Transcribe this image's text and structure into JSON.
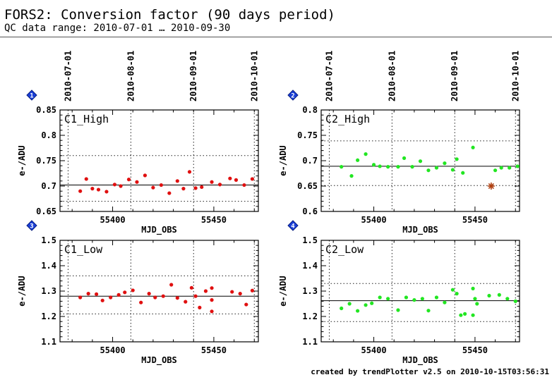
{
  "header": {
    "title": "FORS2: Conversion factor (90 days period)",
    "subtitle": "QC data range: 2010-07-01 … 2010-09-30"
  },
  "footer": "created by trendPlotter v2.5 on 2010-10-15T03:56:31",
  "chart_data": [
    {
      "type": "scatter",
      "panel_number": "1",
      "label": "C1_High",
      "xlabel": "MJD_OBS",
      "ylabel": "e-/ADU",
      "xlim": [
        55374,
        55472
      ],
      "ylim": [
        0.65,
        0.85
      ],
      "yticks": [
        "0.65",
        "0.7",
        "0.75",
        "0.8",
        "0.85"
      ],
      "xticks": [
        "55400",
        "55450"
      ],
      "top_dates": [
        "2010-07-01",
        "2010-08-01",
        "2010-09-01",
        "2010-10-01"
      ],
      "mean": 0.702,
      "limits": [
        0.67,
        0.76
      ],
      "color": "#e01010",
      "x": [
        55384,
        55387,
        55390,
        55393,
        55397,
        55401,
        55404,
        55408,
        55412,
        55416,
        55420,
        55424,
        55428,
        55432,
        55435,
        55438,
        55441,
        55444,
        55449,
        55453,
        55458,
        55461,
        55465,
        55469
      ],
      "y": [
        0.69,
        0.714,
        0.695,
        0.693,
        0.689,
        0.703,
        0.7,
        0.713,
        0.708,
        0.721,
        0.697,
        0.702,
        0.686,
        0.71,
        0.695,
        0.728,
        0.696,
        0.698,
        0.708,
        0.703,
        0.715,
        0.712,
        0.702,
        0.714
      ]
    },
    {
      "type": "scatter",
      "panel_number": "2",
      "label": "C2_High",
      "xlabel": "MJD_OBS",
      "ylabel": "e-/ADU",
      "xlim": [
        55374,
        55472
      ],
      "ylim": [
        0.6,
        0.8
      ],
      "yticks": [
        "0.6",
        "0.65",
        "0.7",
        "0.75",
        "0.8"
      ],
      "xticks": [
        "55400",
        "55450"
      ],
      "top_dates": [
        "2010-07-01",
        "2010-08-01",
        "2010-09-01",
        "2010-10-01"
      ],
      "mean": 0.689,
      "limits": [
        0.651,
        0.739
      ],
      "color": "#22e622",
      "outlier": {
        "x": 55458,
        "y": 0.65,
        "color": "#b04010"
      },
      "x": [
        55384,
        55389,
        55392,
        55396,
        55400,
        55403,
        55407,
        55412,
        55415,
        55419,
        55423,
        55427,
        55431,
        55435,
        55439,
        55441,
        55444,
        55449,
        55460,
        55463,
        55467,
        55471
      ],
      "y": [
        0.688,
        0.67,
        0.701,
        0.713,
        0.692,
        0.689,
        0.688,
        0.688,
        0.705,
        0.688,
        0.699,
        0.681,
        0.686,
        0.695,
        0.682,
        0.703,
        0.676,
        0.726,
        0.681,
        0.686,
        0.686,
        0.689
      ]
    },
    {
      "type": "scatter",
      "panel_number": "3",
      "label": "C1_Low",
      "xlabel": "MJD_OBS",
      "ylabel": "e-/ADU",
      "xlim": [
        55374,
        55472
      ],
      "ylim": [
        1.1,
        1.5
      ],
      "yticks": [
        "1.1",
        "1.2",
        "1.3",
        "1.4",
        "1.5"
      ],
      "xticks": [
        "55400",
        "55450"
      ],
      "mean": 1.28,
      "limits": [
        1.21,
        1.36
      ],
      "color": "#e01010",
      "x": [
        55384,
        55388,
        55392,
        55395,
        55399,
        55403,
        55406,
        55410,
        55414,
        55418,
        55421,
        55425,
        55429,
        55432,
        55436,
        55439,
        55441,
        55443,
        55446,
        55449,
        55449,
        55449,
        55459,
        55463,
        55466,
        55469
      ],
      "y": [
        1.275,
        1.29,
        1.288,
        1.263,
        1.275,
        1.285,
        1.295,
        1.303,
        1.255,
        1.29,
        1.275,
        1.28,
        1.325,
        1.273,
        1.258,
        1.313,
        1.28,
        1.235,
        1.3,
        1.312,
        1.265,
        1.22,
        1.297,
        1.29,
        1.247,
        1.302
      ]
    },
    {
      "type": "scatter",
      "panel_number": "4",
      "label": "C2_Low",
      "xlabel": "MJD_OBS",
      "ylabel": "e-/ADU",
      "xlim": [
        55374,
        55472
      ],
      "ylim": [
        1.1,
        1.5
      ],
      "yticks": [
        "1.1",
        "1.2",
        "1.3",
        "1.4",
        "1.5"
      ],
      "xticks": [
        "55400",
        "55450"
      ],
      "mean": 1.262,
      "limits": [
        1.18,
        1.33
      ],
      "color": "#22e622",
      "x": [
        55384,
        55388,
        55392,
        55396,
        55399,
        55403,
        55407,
        55412,
        55416,
        55420,
        55424,
        55427,
        55431,
        55435,
        55439,
        55441,
        55443,
        55445,
        55449,
        55450,
        55451,
        55449,
        55457,
        55462,
        55466,
        55470
      ],
      "y": [
        1.232,
        1.25,
        1.222,
        1.245,
        1.252,
        1.275,
        1.27,
        1.225,
        1.275,
        1.265,
        1.27,
        1.223,
        1.275,
        1.255,
        1.305,
        1.29,
        1.205,
        1.21,
        1.31,
        1.27,
        1.25,
        1.205,
        1.282,
        1.285,
        1.27,
        1.26
      ]
    }
  ]
}
